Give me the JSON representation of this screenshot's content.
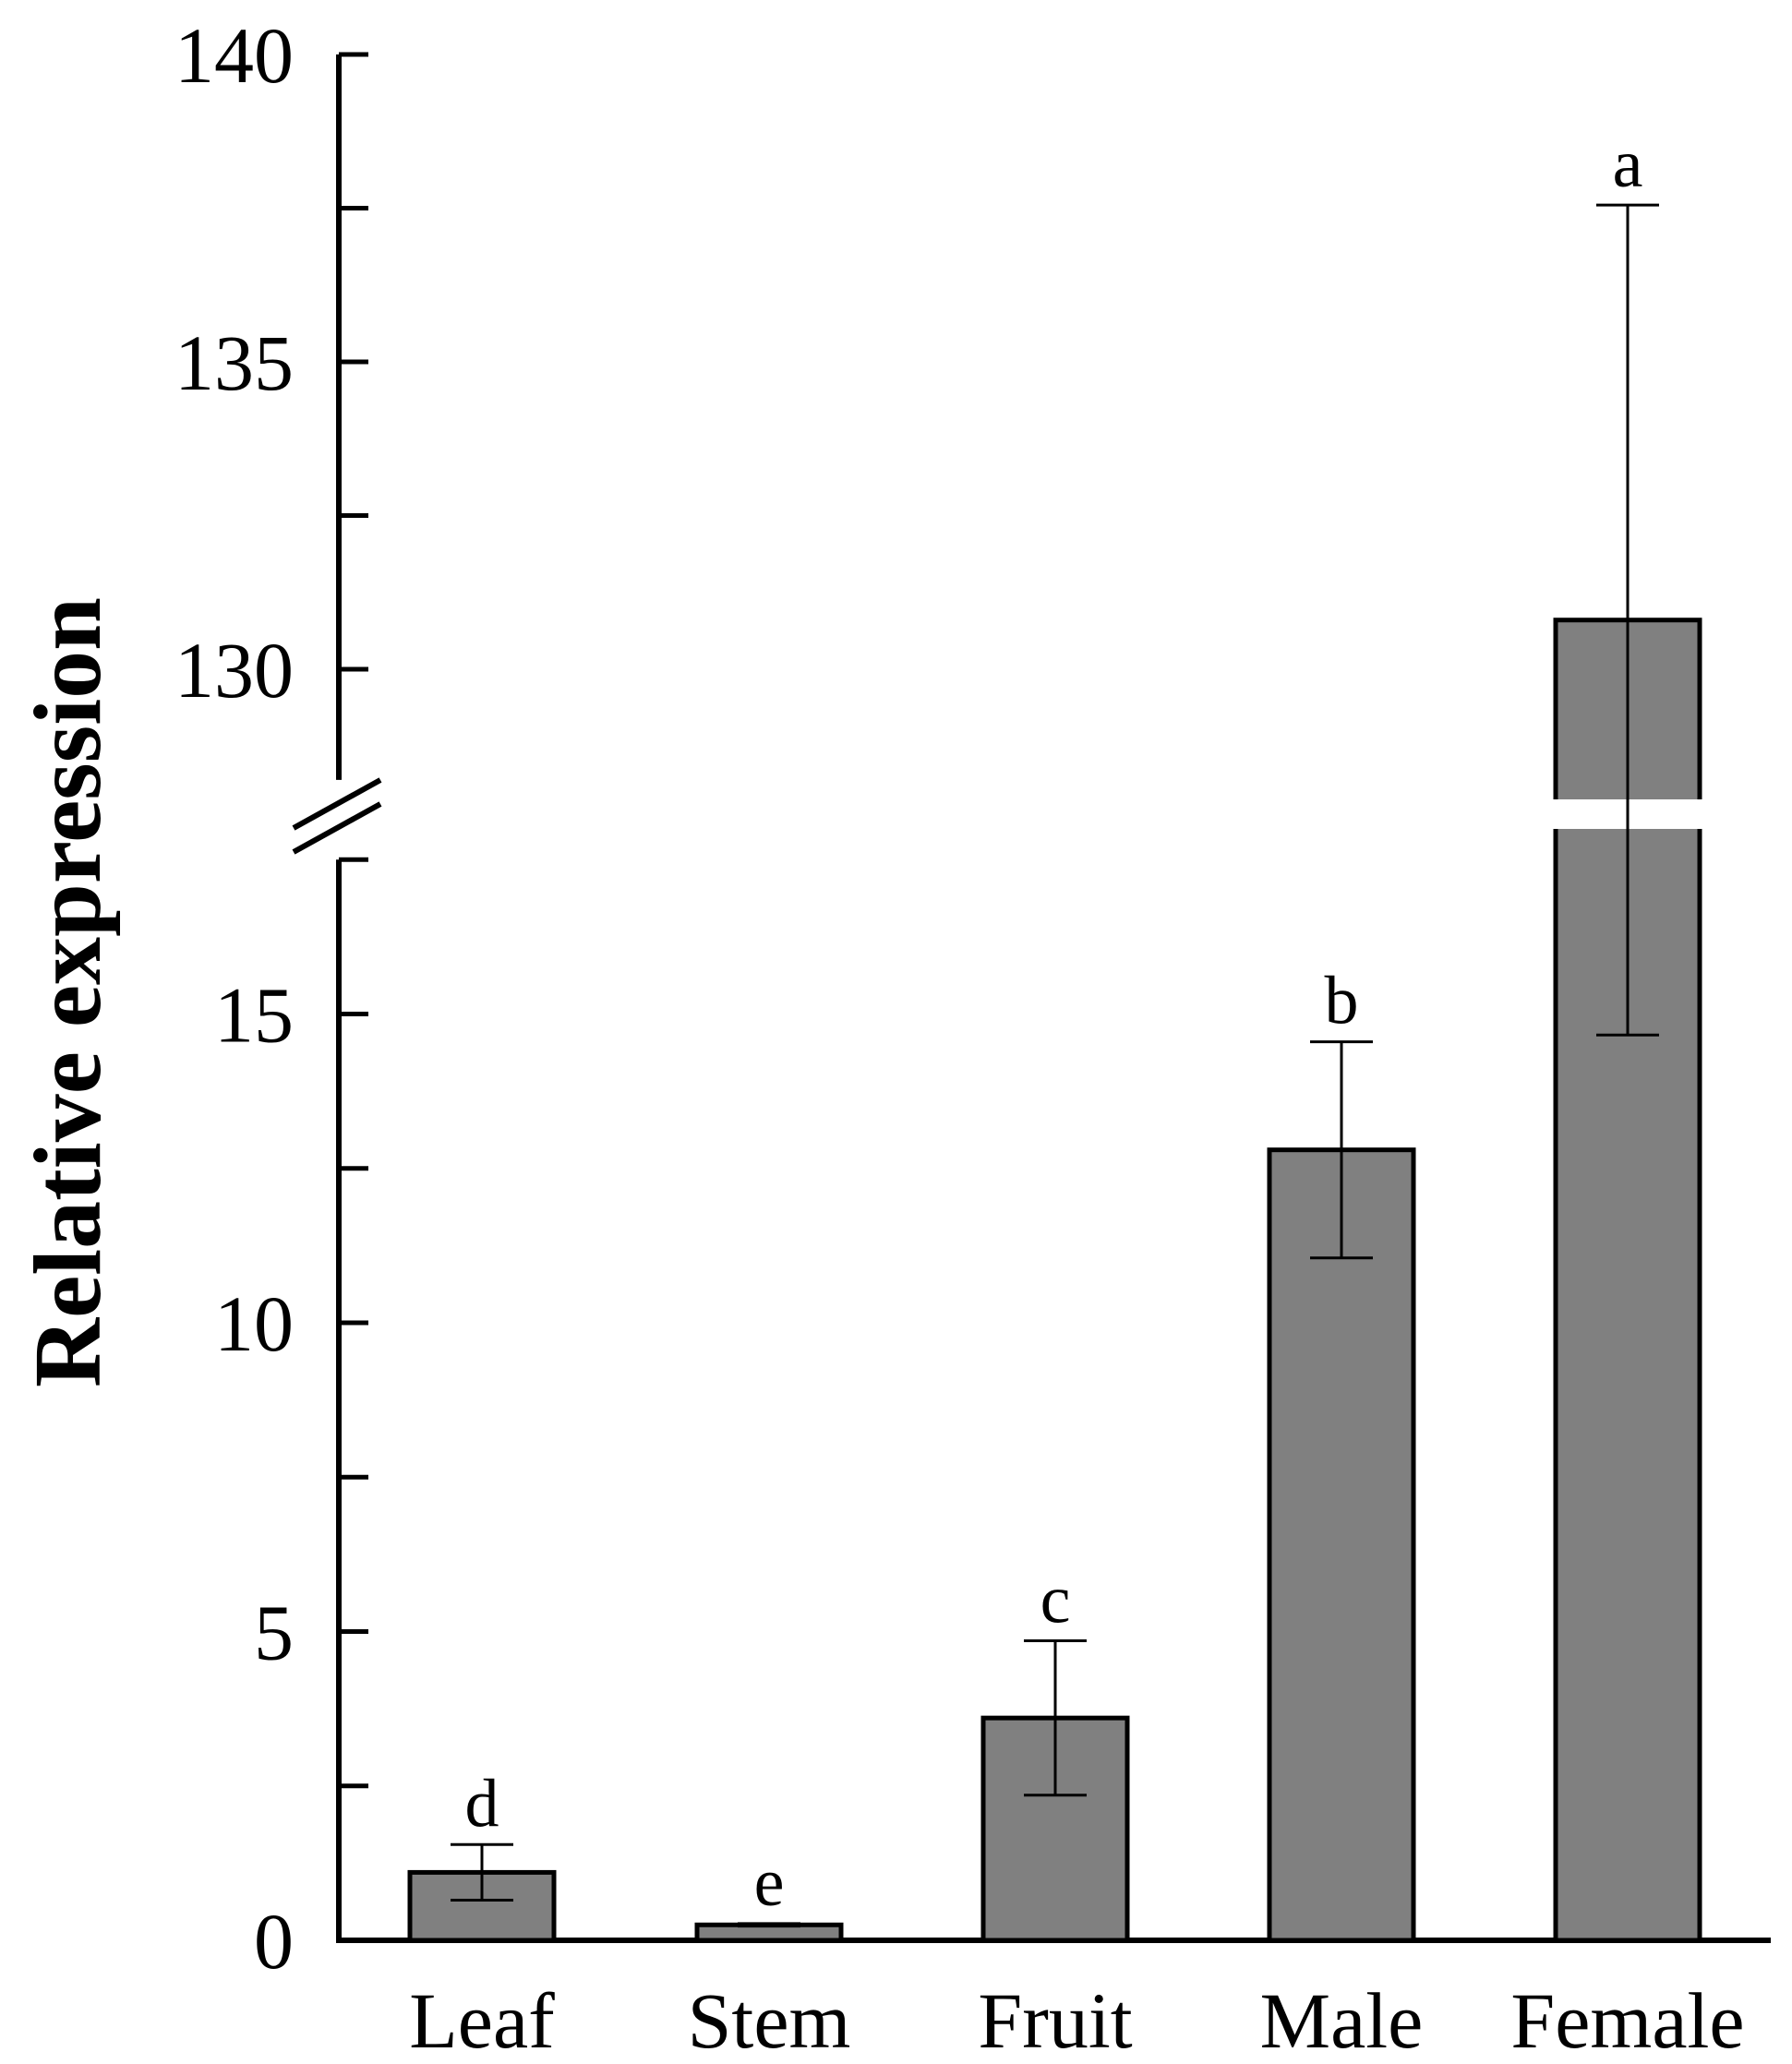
{
  "chart_data": {
    "type": "bar",
    "title": "",
    "xlabel": "",
    "ylabel": "Relative expression",
    "categories": [
      "Leaf",
      "Stem",
      "Fruit",
      "Male",
      "Female"
    ],
    "values": [
      1.1,
      0.25,
      3.6,
      12.8,
      130.8
    ],
    "errors": [
      0.45,
      0.02,
      1.25,
      1.75,
      6.75
    ],
    "significance": [
      "d",
      "e",
      "c",
      "b",
      "a"
    ],
    "bar_color": "#808080",
    "axis_break": {
      "lower_segment": [
        0,
        17.5
      ],
      "upper_segment": [
        128.2,
        140
      ]
    },
    "y_ticks_lower": [
      0,
      5,
      10,
      15
    ],
    "y_ticks_upper": [
      130,
      135,
      140
    ],
    "y_tick_labels_lower": [
      "0",
      "5",
      "10",
      "15"
    ],
    "y_tick_labels_upper": [
      "130",
      "135",
      "140"
    ],
    "grid": false,
    "legend": "none"
  }
}
